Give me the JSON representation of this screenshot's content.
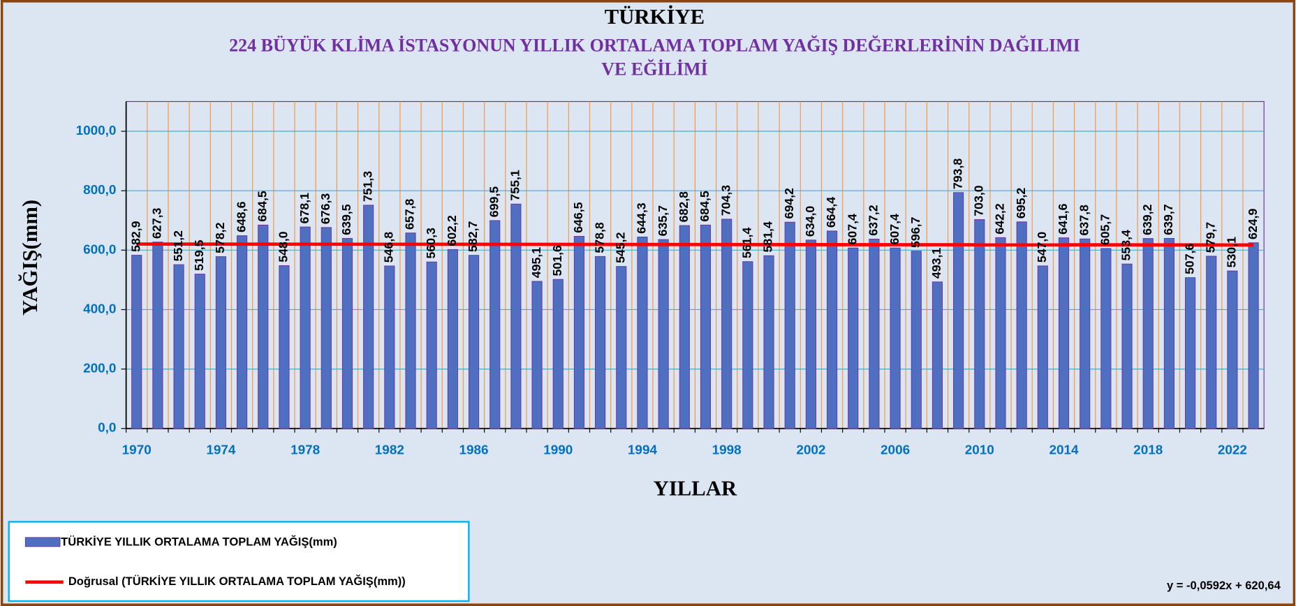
{
  "chart_data": {
    "type": "bar",
    "title": "TÜRKİYE",
    "subtitle": [
      "224 BÜYÜK KLİMA İSTASYONUN YILLIK  ORTALAMA TOPLAM  YAĞIŞ DEĞERLERİNİN DAĞILIMI",
      "VE EĞİLİMİ"
    ],
    "x_label": "YILLAR",
    "y_label": "YAĞIŞ(mm)",
    "categories": [
      "1970",
      null,
      null,
      null,
      "1974",
      null,
      null,
      null,
      "1978",
      null,
      null,
      null,
      "1982",
      null,
      null,
      null,
      "1986",
      null,
      null,
      null,
      "1990",
      null,
      null,
      null,
      "1994",
      null,
      null,
      null,
      "1998",
      null,
      null,
      null,
      "2002",
      null,
      null,
      null,
      "2006",
      null,
      null,
      null,
      "2010",
      null,
      null,
      null,
      "2014",
      null,
      null,
      null,
      "2018",
      null,
      null,
      null,
      "2022",
      null
    ],
    "series": [
      {
        "name": "TÜRKİYE YILLIK ORTALAMA  TOPLAM YAĞIŞ(mm)",
        "color": "#4f6fc0",
        "values": [
          582.9,
          627.3,
          551.2,
          519.5,
          578.2,
          648.6,
          684.5,
          548.0,
          678.1,
          676.3,
          639.5,
          751.3,
          546.8,
          657.8,
          560.3,
          602.2,
          582.7,
          699.5,
          755.1,
          495.1,
          501.6,
          646.5,
          578.8,
          545.2,
          644.3,
          635.7,
          682.8,
          684.5,
          704.3,
          561.4,
          581.4,
          694.2,
          634.0,
          664.4,
          607.4,
          637.2,
          607.4,
          596.7,
          493.1,
          793.8,
          703.0,
          642.2,
          695.2,
          547.0,
          641.6,
          637.8,
          605.7,
          553.4,
          639.2,
          639.7,
          507.6,
          579.7,
          530.1,
          624.9
        ],
        "value_labels": [
          "582,9",
          "627,3",
          "551,2",
          "519,5",
          "578,2",
          "648,6",
          "684,5",
          "548,0",
          "678,1",
          "676,3",
          "639,5",
          "751,3",
          "546,8",
          "657,8",
          "560,3",
          "602,2",
          "582,7",
          "699,5",
          "755,1",
          "495,1",
          "501,6",
          "646,5",
          "578,8",
          "545,2",
          "644,3",
          "635,7",
          "682,8",
          "684,5",
          "704,3",
          "561,4",
          "581,4",
          "694,2",
          "634,0",
          "664,4",
          "607,4",
          "637,2",
          "607,4",
          "596,7",
          "493,1",
          "793,8",
          "703,0",
          "642,2",
          "695,2",
          "547,0",
          "641,6",
          "637,8",
          "605,7",
          "553,4",
          "639,2",
          "639,7",
          "507,6",
          "579,7",
          "530,1",
          "624,9"
        ]
      }
    ],
    "trendline": {
      "name": "Doğrusal (TÜRKİYE YILLIK ORTALAMA  TOPLAM YAĞIŞ(mm))",
      "color": "#ff0000",
      "equation": "y = -0,0592x + 620,64"
    },
    "ylim": [
      0,
      1100
    ],
    "yticks": [
      {
        "value": 0,
        "label": "0,0"
      },
      {
        "value": 200,
        "label": "200,0"
      },
      {
        "value": 400,
        "label": "400,0"
      },
      {
        "value": 600,
        "label": "600,0"
      },
      {
        "value": 800,
        "label": "800,0"
      },
      {
        "value": 1000,
        "label": "1000,0"
      }
    ],
    "grid": true
  }
}
